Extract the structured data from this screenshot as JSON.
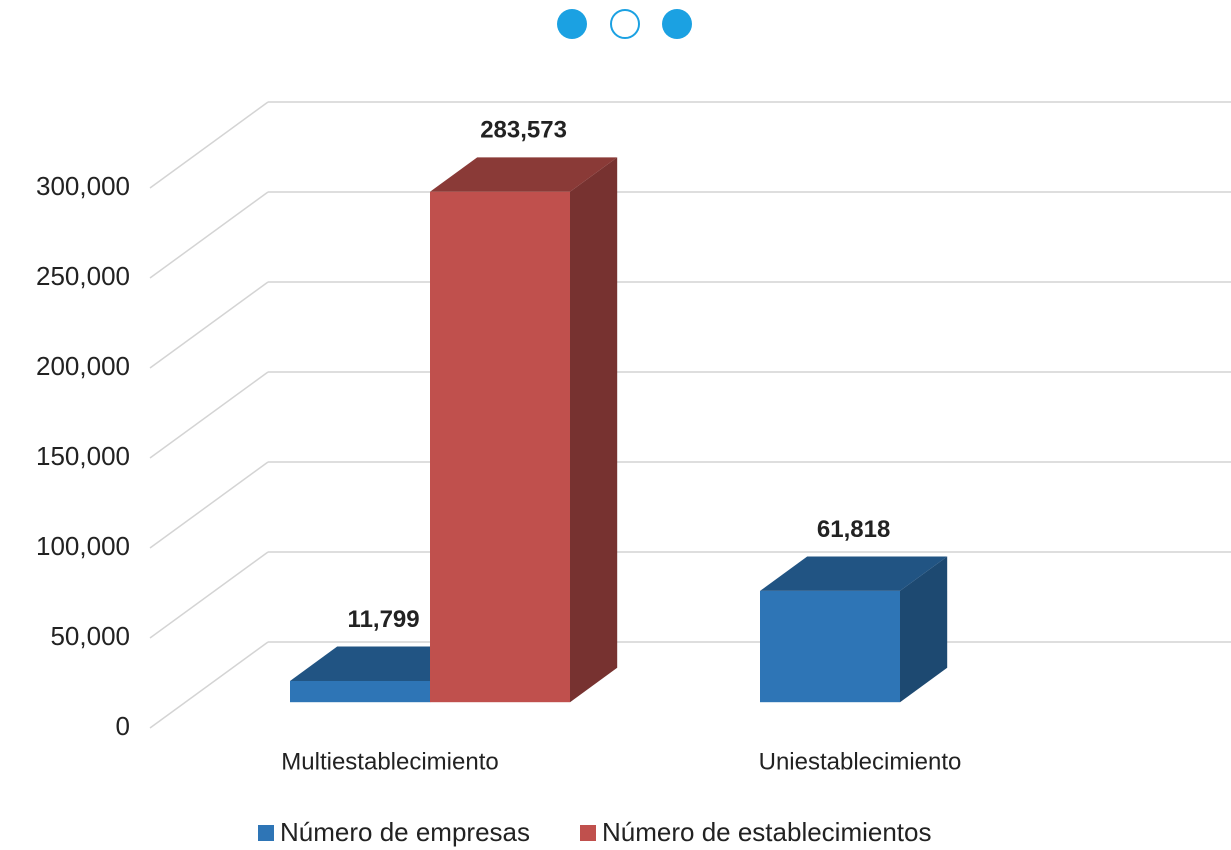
{
  "chart_data": {
    "type": "bar3d",
    "categories": [
      "Multiestablecimiento",
      "Uniestablecimiento"
    ],
    "series": [
      {
        "name": "Número de empresas",
        "color": "#2e75b6",
        "values": [
          11799,
          61818
        ],
        "value_labels": [
          "11,799",
          "61,818"
        ]
      },
      {
        "name": "Número de establecimientos",
        "color": "#c0504d",
        "values": [
          283573,
          null
        ],
        "value_labels": [
          "283,573",
          null
        ]
      }
    ],
    "ylim": [
      0,
      300000
    ],
    "yticks": [
      0,
      {
        "value": 50000,
        "label": "50,000"
      },
      {
        "value": 100000,
        "label": "100,000"
      },
      {
        "value": 150000,
        "label": "150,000"
      },
      {
        "value": 200000,
        "label": "200,000"
      },
      {
        "value": 250000,
        "label": "250,000"
      },
      {
        "value": 300000,
        "label": "300,000"
      }
    ],
    "grid": true,
    "legend": "bottom"
  }
}
